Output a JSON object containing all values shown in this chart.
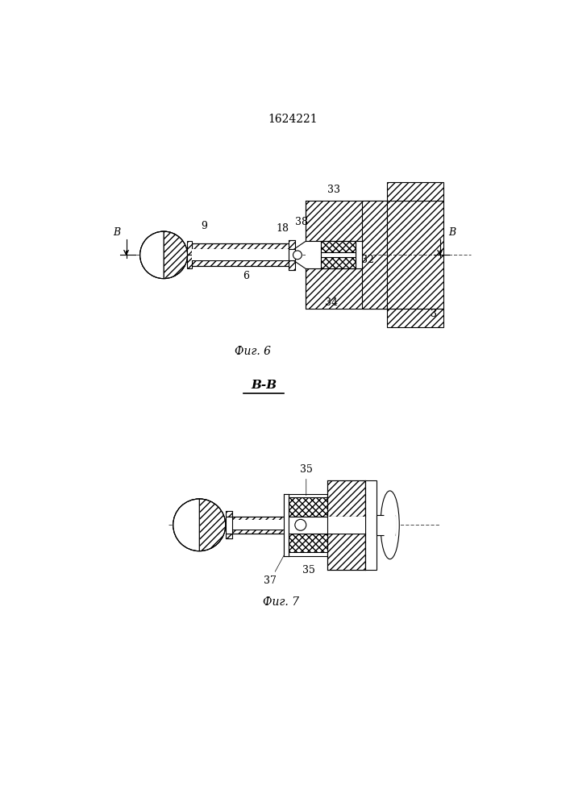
{
  "title": "1624221",
  "fig6_label": "Фиг. 6",
  "fig7_label": "Фиг. 7",
  "section_label": "В-В",
  "bg_color": "#ffffff",
  "line_color": "#000000"
}
